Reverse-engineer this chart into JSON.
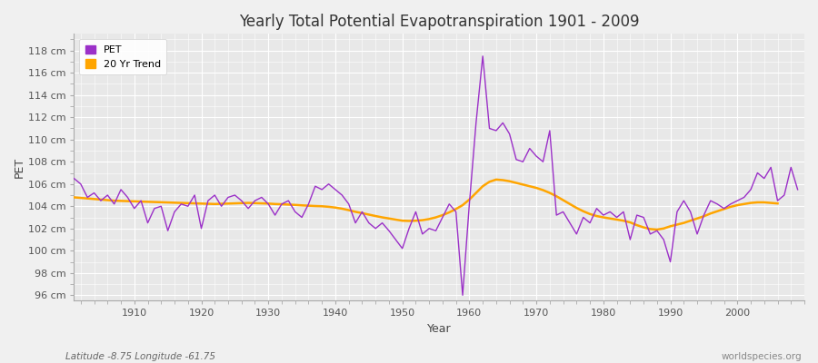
{
  "title": "Yearly Total Potential Evapotranspiration 1901 - 2009",
  "xlabel": "Year",
  "ylabel": "PET",
  "subtitle_left": "Latitude -8.75 Longitude -61.75",
  "subtitle_right": "worldspecies.org",
  "ylim": [
    95.5,
    119.5
  ],
  "xlim": [
    1901,
    2010
  ],
  "fig_bg_color": "#f0f0f0",
  "plot_bg_color": "#e8e8e8",
  "grid_color": "#ffffff",
  "pet_color": "#9b30c8",
  "trend_color": "#ffa500",
  "legend_labels": [
    "PET",
    "20 Yr Trend"
  ],
  "years": [
    1901,
    1902,
    1903,
    1904,
    1905,
    1906,
    1907,
    1908,
    1909,
    1910,
    1911,
    1912,
    1913,
    1914,
    1915,
    1916,
    1917,
    1918,
    1919,
    1920,
    1921,
    1922,
    1923,
    1924,
    1925,
    1926,
    1927,
    1928,
    1929,
    1930,
    1931,
    1932,
    1933,
    1934,
    1935,
    1936,
    1937,
    1938,
    1939,
    1940,
    1941,
    1942,
    1943,
    1944,
    1945,
    1946,
    1947,
    1948,
    1949,
    1950,
    1951,
    1952,
    1953,
    1954,
    1955,
    1956,
    1957,
    1958,
    1959,
    1960,
    1961,
    1962,
    1963,
    1964,
    1965,
    1966,
    1967,
    1968,
    1969,
    1970,
    1971,
    1972,
    1973,
    1974,
    1975,
    1976,
    1977,
    1978,
    1979,
    1980,
    1981,
    1982,
    1983,
    1984,
    1985,
    1986,
    1987,
    1988,
    1989,
    1990,
    1991,
    1992,
    1993,
    1994,
    1995,
    1996,
    1997,
    1998,
    1999,
    2000,
    2001,
    2002,
    2003,
    2004,
    2005,
    2006,
    2007,
    2008,
    2009
  ],
  "pet": [
    106.5,
    106.0,
    104.8,
    105.2,
    104.5,
    105.0,
    104.2,
    105.5,
    104.8,
    103.8,
    104.5,
    102.5,
    103.8,
    104.0,
    101.8,
    103.5,
    104.2,
    104.0,
    105.0,
    102.0,
    104.5,
    105.0,
    104.0,
    104.8,
    105.0,
    104.5,
    103.8,
    104.5,
    104.8,
    104.2,
    103.2,
    104.2,
    104.5,
    103.5,
    103.0,
    104.2,
    105.8,
    105.5,
    106.0,
    105.5,
    105.0,
    104.2,
    102.5,
    103.5,
    102.5,
    102.0,
    102.5,
    101.8,
    101.0,
    100.2,
    102.0,
    103.5,
    101.5,
    102.0,
    101.8,
    103.0,
    104.2,
    103.5,
    96.0,
    104.2,
    111.5,
    117.5,
    111.0,
    110.8,
    111.5,
    110.5,
    108.2,
    108.0,
    109.2,
    108.5,
    108.0,
    110.8,
    103.2,
    103.5,
    102.5,
    101.5,
    103.0,
    102.5,
    103.8,
    103.2,
    103.5,
    103.0,
    103.5,
    101.0,
    103.2,
    103.0,
    101.5,
    101.8,
    101.0,
    99.0,
    103.5,
    104.5,
    103.5,
    101.5,
    103.2,
    104.5,
    104.2,
    103.8,
    104.2,
    104.5,
    104.8,
    105.5,
    107.0,
    106.5,
    107.5,
    104.5,
    105.0,
    107.5,
    105.5
  ],
  "trend": [
    104.8,
    104.75,
    104.7,
    104.65,
    104.6,
    104.55,
    104.5,
    104.48,
    104.46,
    104.44,
    104.42,
    104.4,
    104.38,
    104.36,
    104.34,
    104.32,
    104.3,
    104.28,
    104.26,
    104.24,
    104.22,
    104.2,
    104.22,
    104.24,
    104.26,
    104.28,
    104.3,
    104.28,
    104.26,
    104.24,
    104.2,
    104.18,
    104.15,
    104.12,
    104.08,
    104.05,
    104.02,
    104.0,
    103.95,
    103.88,
    103.78,
    103.65,
    103.5,
    103.38,
    103.25,
    103.12,
    103.0,
    102.9,
    102.8,
    102.7,
    102.68,
    102.7,
    102.75,
    102.85,
    103.0,
    103.2,
    103.45,
    103.75,
    104.1,
    104.6,
    105.2,
    105.8,
    106.2,
    106.4,
    106.35,
    106.25,
    106.1,
    105.95,
    105.8,
    105.65,
    105.45,
    105.2,
    104.9,
    104.55,
    104.2,
    103.85,
    103.55,
    103.3,
    103.12,
    103.0,
    102.9,
    102.8,
    102.7,
    102.55,
    102.3,
    102.1,
    101.95,
    101.9,
    102.0,
    102.2,
    102.35,
    102.5,
    102.7,
    102.9,
    103.1,
    103.35,
    103.55,
    103.75,
    103.95,
    104.1,
    104.2,
    104.3,
    104.35,
    104.35,
    104.3,
    104.25,
    null,
    null,
    null
  ]
}
